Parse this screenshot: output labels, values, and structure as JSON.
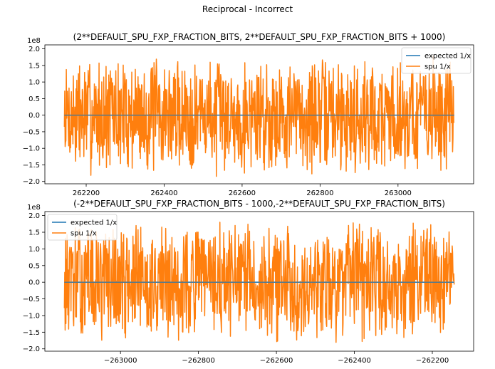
{
  "figure": {
    "suptitle": "Reciprocal - Incorrect"
  },
  "colors": {
    "expected": "#1f77b4",
    "spu": "#ff7f0e",
    "axis": "#000000"
  },
  "chart_data": [
    {
      "type": "line",
      "title": "(2**DEFAULT_SPU_FXP_FRACTION_BITS, 2**DEFAULT_SPU_FXP_FRACTION_BITS + 1000)",
      "xlabel": "",
      "ylabel": "",
      "y_multiplier_label": "1e8",
      "xlim": [
        262094,
        263194
      ],
      "ylim": [
        -2.07,
        2.12
      ],
      "x_range": [
        262144,
        263144
      ],
      "xticks": [
        262200,
        262400,
        262600,
        262800,
        263000
      ],
      "xtick_labels": [
        "262200",
        "262400",
        "262600",
        "262800",
        "263000"
      ],
      "yticks": [
        -2.0,
        -1.5,
        -1.0,
        -0.5,
        0.0,
        0.5,
        1.0,
        1.5,
        2.0
      ],
      "ytick_labels": [
        "−2.0",
        "−1.5",
        "−1.0",
        "−0.5",
        "0.0",
        "0.5",
        "1.0",
        "1.5",
        "2.0"
      ],
      "legend_placement": "upper right",
      "grid": false,
      "series": [
        {
          "name": "expected 1/x",
          "color": "#1f77b4",
          "constant": 0.0
        },
        {
          "name": "spu 1/x",
          "color": "#ff7f0e",
          "noise_amplitude": 1.9,
          "seed": 7
        }
      ]
    },
    {
      "type": "line",
      "title": "(-2**DEFAULT_SPU_FXP_FRACTION_BITS - 1000,-2**DEFAULT_SPU_FXP_FRACTION_BITS)",
      "xlabel": "",
      "ylabel": "",
      "y_multiplier_label": "1e8",
      "xlim": [
        -263194,
        -262094
      ],
      "ylim": [
        -2.07,
        2.12
      ],
      "x_range": [
        -263144,
        -262144
      ],
      "xticks": [
        -263000,
        -262800,
        -262600,
        -262400,
        -262200
      ],
      "xtick_labels": [
        "−263000",
        "−262800",
        "−262600",
        "−262400",
        "−262200"
      ],
      "yticks": [
        -2.0,
        -1.5,
        -1.0,
        -0.5,
        0.0,
        0.5,
        1.0,
        1.5,
        2.0
      ],
      "ytick_labels": [
        "−2.0",
        "−1.5",
        "−1.0",
        "−0.5",
        "0.0",
        "0.5",
        "1.0",
        "1.5",
        "2.0"
      ],
      "legend_placement": "upper left",
      "grid": false,
      "series": [
        {
          "name": "expected 1/x",
          "color": "#1f77b4",
          "constant": 0.0
        },
        {
          "name": "spu 1/x",
          "color": "#ff7f0e",
          "noise_amplitude": 1.9,
          "seed": 13
        }
      ]
    }
  ]
}
